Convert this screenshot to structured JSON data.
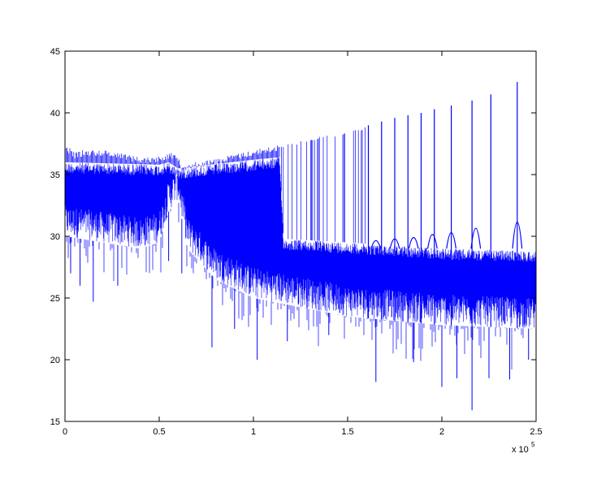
{
  "chart_data": {
    "type": "line",
    "title": "",
    "xlabel": "",
    "ylabel": "",
    "xlim": [
      0,
      250000
    ],
    "ylim": [
      15,
      45
    ],
    "x_ticks": [
      0,
      50000,
      100000,
      150000,
      200000,
      250000
    ],
    "x_tick_labels": [
      "0",
      "0.5",
      "1",
      "1.5",
      "2",
      "2.5"
    ],
    "x_multiplier": {
      "base": "x 10",
      "exponent": "5"
    },
    "y_ticks": [
      15,
      20,
      25,
      30,
      35,
      40,
      45
    ],
    "y_tick_labels": [
      "15",
      "20",
      "25",
      "30",
      "35",
      "40",
      "45"
    ],
    "grid": false,
    "legend": "none",
    "series": [
      {
        "color": "#0000ff",
        "envelope_max": {
          "x": [
            0,
            5000,
            10000,
            20000,
            30000,
            40000,
            50000,
            55000,
            60000,
            62000,
            65000,
            80000,
            100000,
            120000,
            150000,
            200000,
            250000
          ],
          "y": [
            37.5,
            36.8,
            37.0,
            37.0,
            36.8,
            36.4,
            36.5,
            36.8,
            36.6,
            35.8,
            35.9,
            36.3,
            37.0,
            37.6,
            38.6,
            40.3,
            41.8
          ]
        },
        "envelope_upper_band": {
          "x": [
            0,
            50000,
            55000,
            60000,
            65000,
            100000,
            114000,
            116000,
            150000,
            200000,
            250000
          ],
          "y": [
            36.0,
            35.8,
            36.0,
            35.5,
            35.6,
            36.2,
            36.4,
            29.8,
            29.5,
            29.0,
            28.8
          ]
        },
        "envelope_typical_min": {
          "x": [
            0,
            40000,
            50000,
            55000,
            60000,
            65000,
            80000,
            100000,
            150000,
            200000,
            250000
          ],
          "y": [
            30.0,
            29.0,
            29.5,
            32.0,
            33.0,
            29.0,
            26.5,
            25.0,
            23.5,
            22.8,
            22.5
          ]
        },
        "deep_dips": {
          "x": [
            3000,
            8000,
            15000,
            28000,
            55000,
            62000,
            78000,
            90000,
            102000,
            118000,
            140000,
            165000,
            185000,
            200000,
            208000,
            216000,
            225000,
            236000,
            246000
          ],
          "y": [
            27.0,
            26.0,
            24.7,
            26.0,
            28.0,
            27.0,
            21.0,
            22.5,
            20.0,
            21.5,
            22.0,
            18.2,
            19.8,
            17.8,
            18.5,
            15.9,
            18.5,
            18.4,
            20.0
          ]
        },
        "spikes": {
          "x": [
            161000,
            168000,
            175000,
            182000,
            189000,
            196000,
            205000,
            216000,
            226000,
            240000
          ],
          "y": [
            39.0,
            39.3,
            39.6,
            39.8,
            40.0,
            40.3,
            40.6,
            41.0,
            41.5,
            42.5
          ]
        },
        "spike_bases": {
          "x": [
            165000,
            175000,
            185000,
            195000,
            205000,
            218000,
            240000
          ],
          "y": [
            29.5,
            29.8,
            30.0,
            30.5,
            30.8,
            31.5,
            32.5
          ]
        }
      }
    ]
  }
}
